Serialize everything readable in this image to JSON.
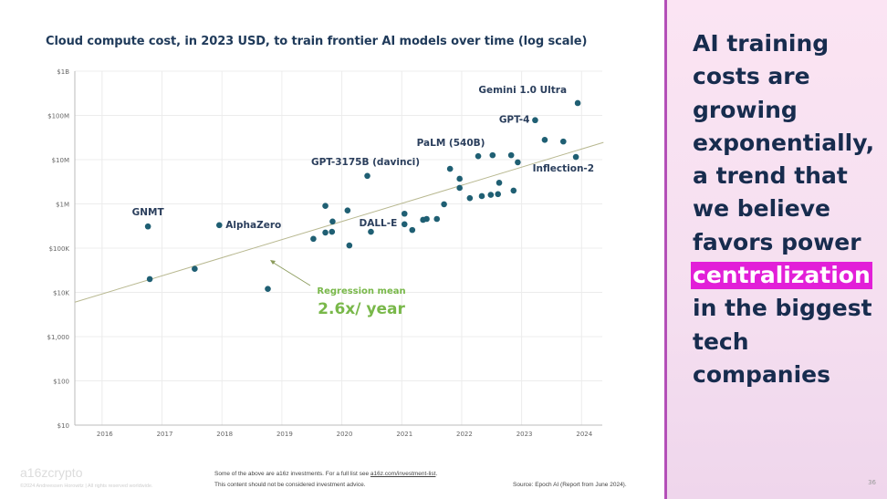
{
  "chart_data": {
    "type": "scatter",
    "title": "Cloud compute cost, in 2023 USD, to train frontier AI models over time (log scale)",
    "y_scale": "log",
    "ylim": [
      10,
      1000000000
    ],
    "xlim": [
      2015.5,
      2024.3
    ],
    "y_ticks": [
      {
        "value": 1000000000,
        "label": "$1B"
      },
      {
        "value": 100000000,
        "label": "$100M"
      },
      {
        "value": 10000000,
        "label": "$10M"
      },
      {
        "value": 1000000,
        "label": "$1M"
      },
      {
        "value": 100000,
        "label": "$100K"
      },
      {
        "value": 10000,
        "label": "$10K"
      },
      {
        "value": 1000,
        "label": "$1,000"
      },
      {
        "value": 100,
        "label": "$100"
      },
      {
        "value": 10,
        "label": "$10"
      }
    ],
    "x_ticks": [
      "2016",
      "2017",
      "2018",
      "2019",
      "2020",
      "2021",
      "2022",
      "2023",
      "2024"
    ],
    "grid": true,
    "point_color": "#1f5f73",
    "points": [
      [
        2016.72,
        309000
      ],
      [
        2016.75,
        20000
      ],
      [
        2017.5,
        34000
      ],
      [
        2017.91,
        330000
      ],
      [
        2018.72,
        12000
      ],
      [
        2019.48,
        162000
      ],
      [
        2019.68,
        900000
      ],
      [
        2019.68,
        225000
      ],
      [
        2019.79,
        234000
      ],
      [
        2019.8,
        400000
      ],
      [
        2020.05,
        710000
      ],
      [
        2020.08,
        115000
      ],
      [
        2020.38,
        4300000
      ],
      [
        2020.44,
        234000
      ],
      [
        2021.0,
        600000
      ],
      [
        2021.0,
        347000
      ],
      [
        2021.13,
        257000
      ],
      [
        2021.31,
        436000
      ],
      [
        2021.37,
        457000
      ],
      [
        2021.54,
        457000
      ],
      [
        2021.66,
        980000
      ],
      [
        2021.76,
        6200000
      ],
      [
        2021.92,
        2300000
      ],
      [
        2021.92,
        3700000
      ],
      [
        2022.09,
        1350000
      ],
      [
        2022.23,
        12000000
      ],
      [
        2022.29,
        1500000
      ],
      [
        2022.44,
        1600000
      ],
      [
        2022.47,
        12600000
      ],
      [
        2022.56,
        1660000
      ],
      [
        2022.58,
        3000000
      ],
      [
        2022.78,
        12600000
      ],
      [
        2022.82,
        2000000
      ],
      [
        2022.89,
        8700000
      ],
      [
        2023.18,
        78000000
      ],
      [
        2023.34,
        28000000
      ],
      [
        2023.65,
        25700000
      ],
      [
        2023.86,
        11500000
      ],
      [
        2023.89,
        190000000
      ]
    ],
    "labeled_points": [
      {
        "label": "GNMT",
        "x": 2016.72,
        "y": 309000
      },
      {
        "label": "AlphaZero",
        "x": 2017.91,
        "y": 330000
      },
      {
        "label": "GPT-3175B (davinci)",
        "x": 2020.38,
        "y": 4300000
      },
      {
        "label": "DALL-E",
        "x": 2021.0,
        "y": 347000
      },
      {
        "label": "PaLM (540B)",
        "x": 2022.23,
        "y": 12000000
      },
      {
        "label": "GPT-4",
        "x": 2023.18,
        "y": 78000000
      },
      {
        "label": "Gemini 1.0 Ultra",
        "x": 2023.89,
        "y": 190000000
      },
      {
        "label": "Inflection-2",
        "x": 2023.86,
        "y": 11500000
      }
    ],
    "regression": {
      "x": [
        2015.5,
        2024.32
      ],
      "y": [
        6000,
        24500000
      ],
      "color": "#b8b890"
    },
    "annotation": {
      "line1": "Regression mean",
      "line2": "2.6x/ year",
      "color": "#79b84a"
    }
  },
  "panel": {
    "lines": [
      "AI training",
      "costs are",
      "growing",
      "exponentially,",
      "a trend that",
      "we believe",
      "favors power"
    ],
    "highlight": "centralization",
    "lines_after": [
      "in the biggest",
      "tech",
      "companies"
    ],
    "highlight_color": "#e21fd8"
  },
  "footer": {
    "logo": "a16zcrypto",
    "copyright": "©2024 Andreessen Horowitz | All rights reserved worldwide.",
    "disclaimer_1_pre": "Some of the above are a16z investments. For a full list see ",
    "disclaimer_1_link": "a16z.com/investment-list",
    "disclaimer_1_post": ".",
    "disclaimer_2": "This content should not be considered investment advice.",
    "source": "Source: Epoch AI (Report from June 2024).",
    "page_number": "36"
  }
}
